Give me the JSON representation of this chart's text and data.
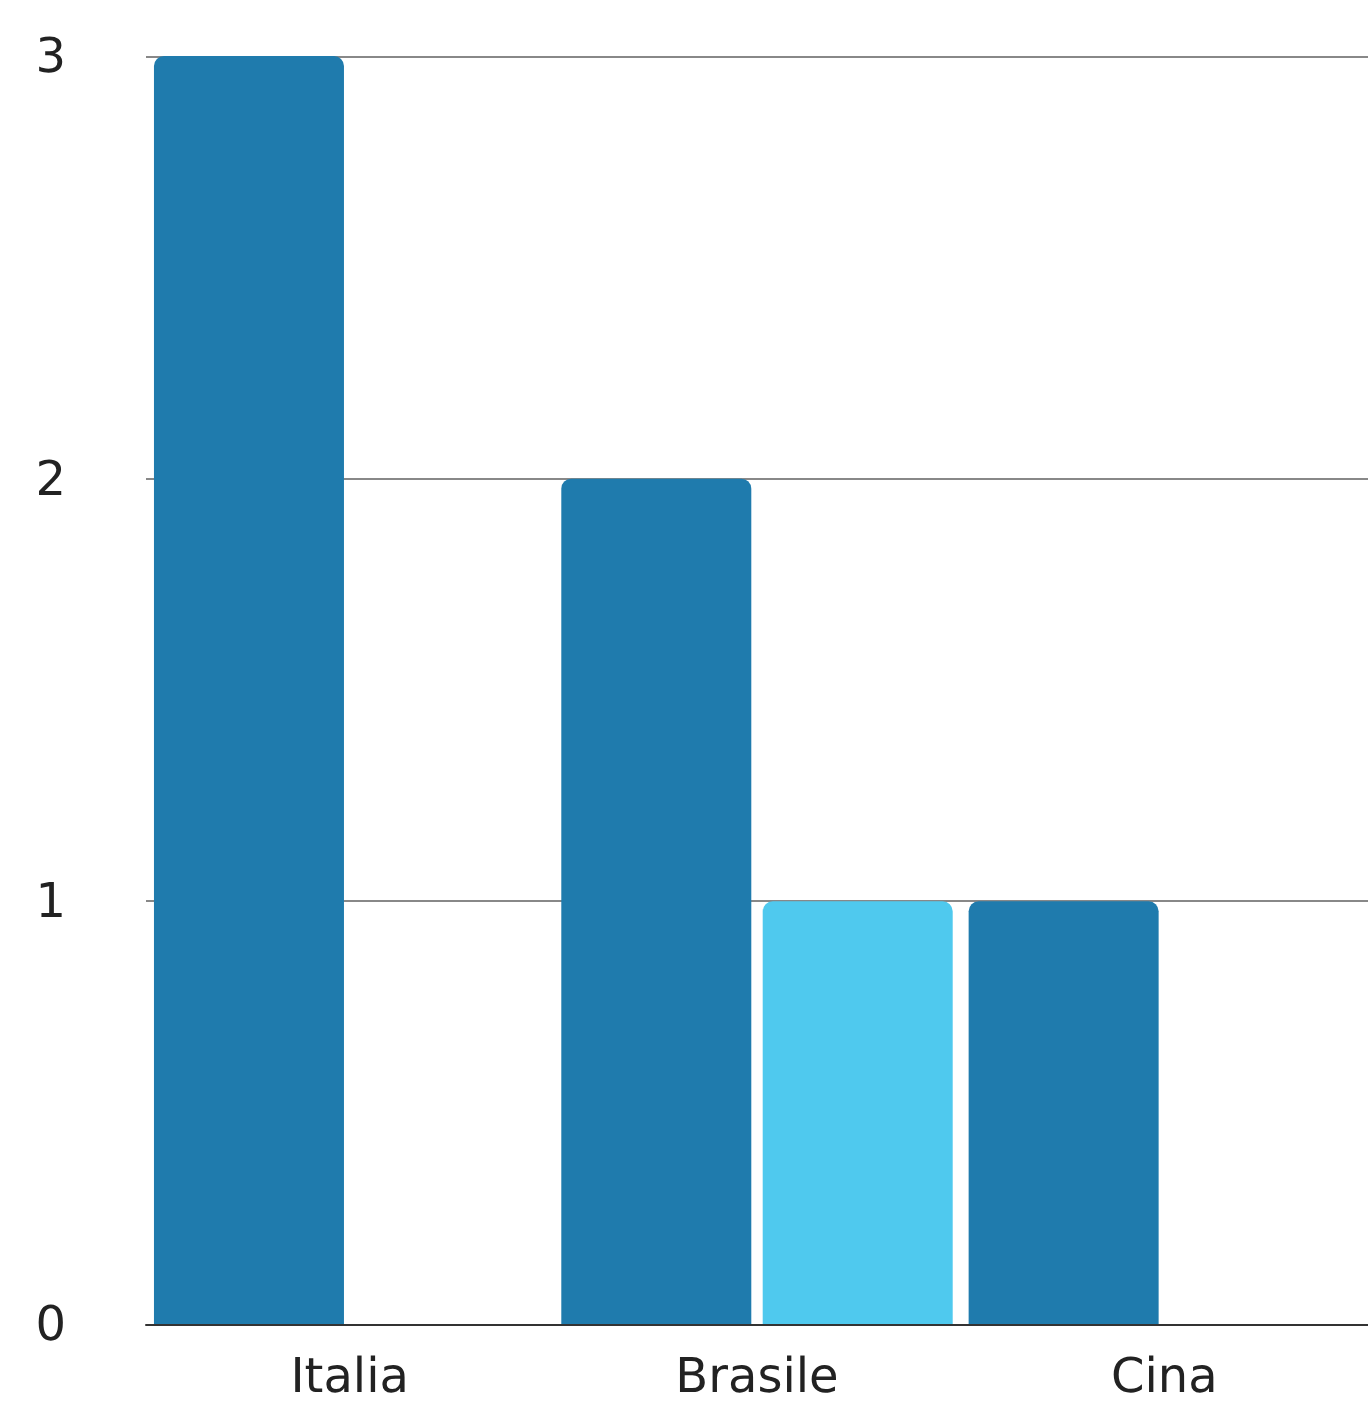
{
  "chart_data": {
    "type": "bar",
    "categories": [
      "Italia",
      "Brasile",
      "Cina"
    ],
    "series": [
      {
        "color": "#1f7bad",
        "values": [
          3,
          2,
          1
        ]
      },
      {
        "color": "#4fc9ee",
        "values": [
          null,
          1,
          null
        ]
      }
    ],
    "ylim": [
      0,
      3
    ],
    "yticks": [
      0,
      1,
      2,
      3
    ],
    "grid": "y"
  }
}
